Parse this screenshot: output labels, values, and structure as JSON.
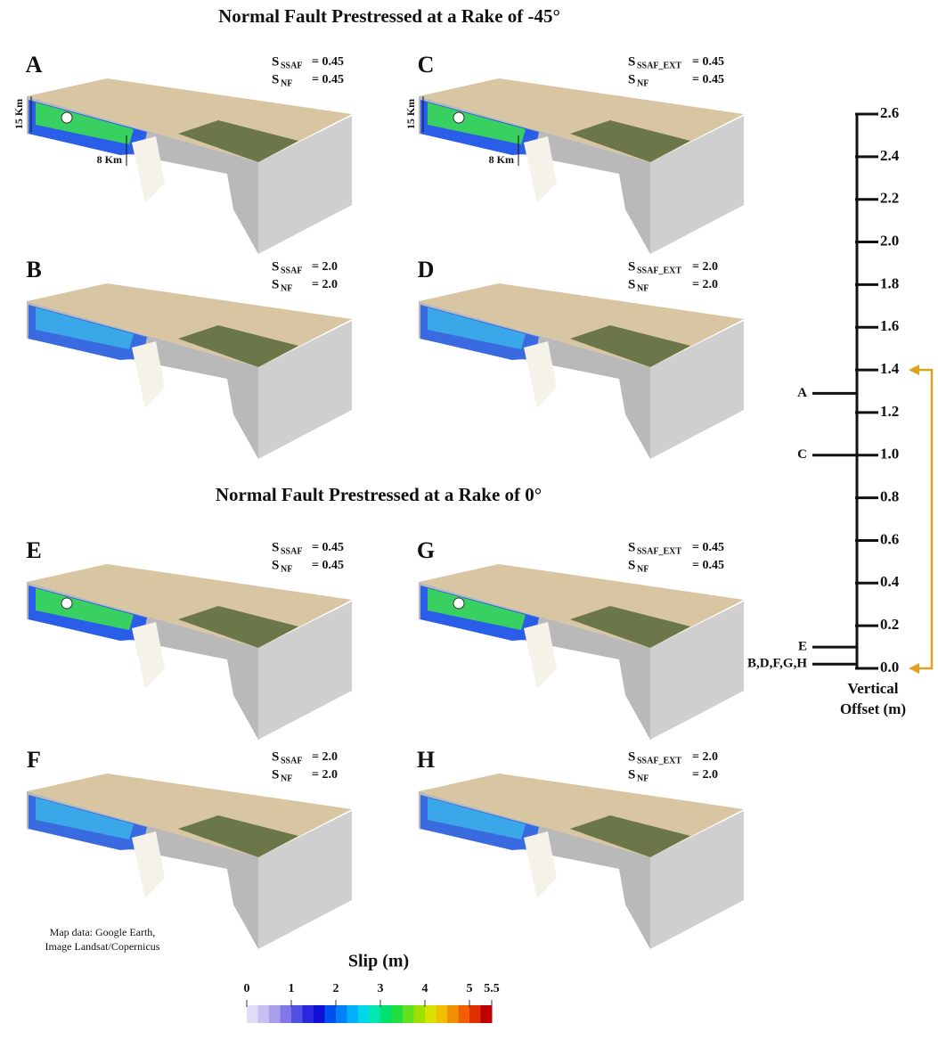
{
  "titles": [
    "Normal Fault Prestressed at a Rake of -45°",
    "Normal Fault Prestressed at a Rake of 0°"
  ],
  "panels": [
    {
      "label": "A",
      "stress": [
        {
          "symbol": "S",
          "subscript": "SSAF",
          "value": "= 0.45"
        },
        {
          "symbol": "S",
          "subscript": "NF",
          "value": "= 0.45"
        }
      ],
      "annotations": [
        "15 Km",
        "8 Km"
      ]
    },
    {
      "label": "C",
      "stress": [
        {
          "symbol": "S",
          "subscript": "SSAF_EXT",
          "value": "= 0.45"
        },
        {
          "symbol": "S",
          "subscript": "NF",
          "value": "= 0.45"
        }
      ],
      "annotations": [
        "15 Km",
        "8 Km"
      ]
    },
    {
      "label": "B",
      "stress": [
        {
          "symbol": "S",
          "subscript": "SSAF",
          "value": "= 2.0"
        },
        {
          "symbol": "S",
          "subscript": "NF",
          "value": "= 2.0"
        }
      ]
    },
    {
      "label": "D",
      "stress": [
        {
          "symbol": "S",
          "subscript": "SSAF_EXT",
          "value": "= 2.0"
        },
        {
          "symbol": "S",
          "subscript": "NF",
          "value": "= 2.0"
        }
      ]
    },
    {
      "label": "E",
      "stress": [
        {
          "symbol": "S",
          "subscript": "SSAF",
          "value": "= 0.45"
        },
        {
          "symbol": "S",
          "subscript": "NF",
          "value": "= 0.45"
        }
      ]
    },
    {
      "label": "G",
      "stress": [
        {
          "symbol": "S",
          "subscript": "SSAF_EXT",
          "value": "= 0.45"
        },
        {
          "symbol": "S",
          "subscript": "NF",
          "value": "= 0.45"
        }
      ]
    },
    {
      "label": "F",
      "stress": [
        {
          "symbol": "S",
          "subscript": "SSAF",
          "value": "= 2.0"
        },
        {
          "symbol": "S",
          "subscript": "NF",
          "value": "= 2.0"
        }
      ]
    },
    {
      "label": "H",
      "stress": [
        {
          "symbol": "S",
          "subscript": "SSAF_EXT",
          "value": "= 2.0"
        },
        {
          "symbol": "S",
          "subscript": "NF",
          "value": "= 2.0"
        }
      ]
    }
  ],
  "credit": [
    "Map data: Google Earth,",
    "Image Landsat/Copernicus"
  ],
  "scale": {
    "title": [
      "Vertical",
      "Offset (m)"
    ],
    "range": [
      0,
      2.6
    ],
    "ticks": [
      {
        "value": 0,
        "label": "0.0"
      },
      0.2,
      0.4,
      0.6,
      0.8,
      {
        "value": 1,
        "label": "1.0"
      },
      1.2,
      1.4,
      1.6,
      1.8,
      {
        "value": 2,
        "label": "2.0"
      },
      2.2,
      2.4,
      2.6
    ],
    "markers": [
      {
        "label": "A",
        "value": 1.29
      },
      {
        "label": "C",
        "value": 1.0
      },
      {
        "label": "E",
        "value": 0.1
      },
      {
        "label": "B,D,F,G,H",
        "value": 0.02
      }
    ],
    "arrow": [
      0,
      1.4
    ],
    "arrow_color": "#e0a020"
  },
  "colorbar": {
    "title": "Slip (m)",
    "range": [
      0,
      5.5
    ],
    "ticks": [
      0,
      1,
      2,
      3,
      4,
      5,
      5.5
    ],
    "colors": [
      "#e0dcf5",
      "#c8c0f0",
      "#a8a0ec",
      "#8078e8",
      "#5050e6",
      "#2828e0",
      "#1010d8",
      "#0050f0",
      "#0080f8",
      "#00b0f8",
      "#00d8e8",
      "#00e8b0",
      "#00e070",
      "#20e040",
      "#60e020",
      "#a0e000",
      "#d8e000",
      "#f0c000",
      "#f09000",
      "#f06000",
      "#e03000",
      "#c00000"
    ]
  }
}
